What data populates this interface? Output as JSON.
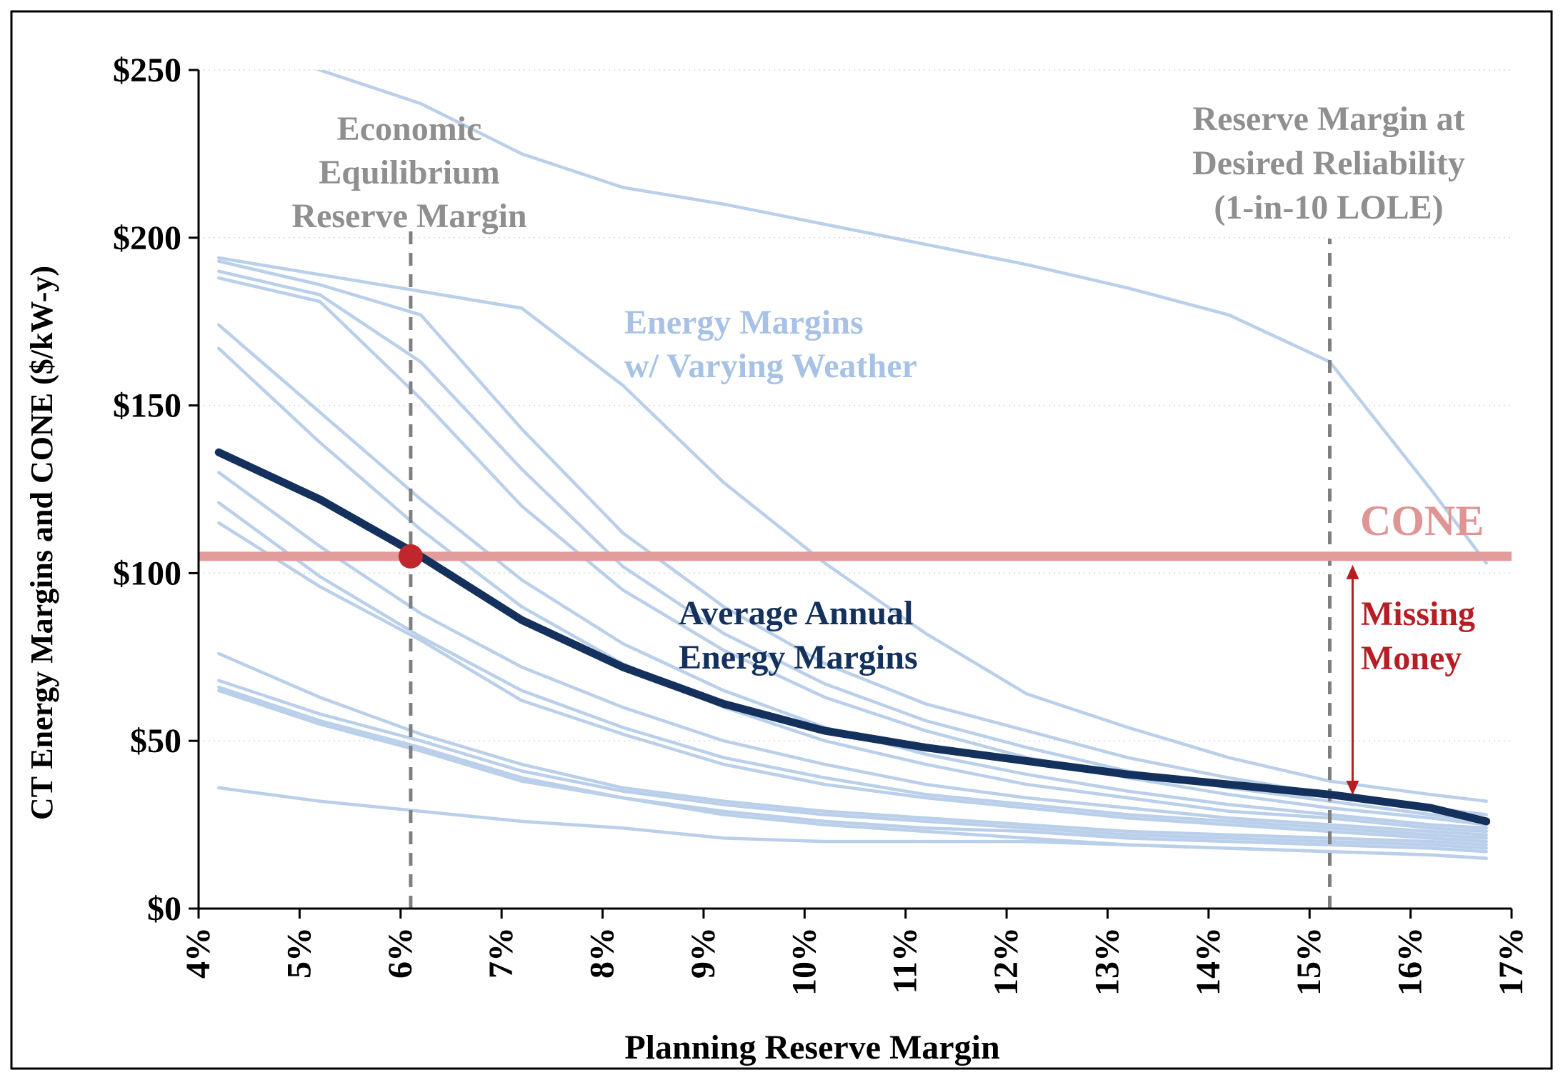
{
  "chart_data": {
    "type": "line",
    "xlabel": "Planning Reserve Margin",
    "ylabel": "CT Energy Margins and CONE ($/kW-y)",
    "xlim": [
      4,
      17
    ],
    "ylim": [
      0,
      250
    ],
    "x_ticks": [
      4,
      5,
      6,
      7,
      8,
      9,
      10,
      11,
      12,
      13,
      14,
      15,
      16,
      17
    ],
    "x_tick_labels": [
      "4%",
      "5%",
      "6%",
      "7%",
      "8%",
      "9%",
      "10%",
      "11%",
      "12%",
      "13%",
      "14%",
      "15%",
      "16%",
      "17%"
    ],
    "y_ticks": [
      0,
      50,
      100,
      150,
      200,
      250
    ],
    "y_tick_labels": [
      "$0",
      "$50",
      "$100",
      "$150",
      "$200",
      "$250"
    ],
    "grid": "horizontal-dotted",
    "cone_value": 105,
    "equilibrium_point": {
      "x": 6.1,
      "y": 105
    },
    "equilibrium_margin": 6.1,
    "reliability_margin": 15.2,
    "missing_money_range": [
      33,
      105
    ],
    "average_series": {
      "x": [
        4.2,
        5.2,
        6.2,
        7.2,
        8.2,
        9.2,
        10.2,
        11.2,
        12.2,
        13.2,
        14.2,
        15.2,
        16.2,
        16.75
      ],
      "y": [
        136,
        122,
        105,
        86,
        72,
        61,
        53,
        48,
        44,
        40,
        37,
        34,
        30,
        26
      ]
    },
    "weather_series": [
      {
        "x": [
          4.2,
          5.2,
          6.2,
          7.2,
          8.2,
          9.2,
          10.2,
          11.2,
          12.2,
          13.2,
          14.2,
          15.2,
          16.2,
          16.75
        ],
        "y": [
          260,
          250,
          240,
          225,
          215,
          210,
          204,
          198,
          192,
          185,
          177,
          163,
          125,
          103
        ]
      },
      {
        "x": [
          4.2,
          5.2,
          6.2,
          7.2,
          8.2,
          9.2,
          10.2,
          11.2,
          12.2,
          13.2,
          14.2,
          15.2,
          16.2,
          16.75
        ],
        "y": [
          194,
          189,
          184,
          179,
          156,
          127,
          103,
          82,
          64,
          54,
          45,
          38,
          34,
          32
        ]
      },
      {
        "x": [
          4.2,
          5.2,
          6.2,
          7.2,
          8.2,
          9.2,
          10.2,
          11.2,
          12.2,
          13.2,
          14.2,
          15.2,
          16.2,
          16.75
        ],
        "y": [
          193,
          186,
          177,
          143,
          112,
          90,
          73,
          61,
          53,
          45,
          39,
          34,
          30,
          28
        ]
      },
      {
        "x": [
          4.2,
          5.2,
          6.2,
          7.2,
          8.2,
          9.2,
          10.2,
          11.2,
          12.2,
          13.2,
          14.2,
          15.2,
          16.2,
          16.75
        ],
        "y": [
          190,
          183,
          163,
          131,
          102,
          82,
          67,
          56,
          48,
          41,
          36,
          32,
          28,
          26
        ]
      },
      {
        "x": [
          4.2,
          5.2,
          6.2,
          7.2,
          8.2,
          9.2,
          10.2,
          11.2,
          12.2,
          13.2,
          14.2,
          15.2,
          16.2,
          16.75
        ],
        "y": [
          188,
          181,
          152,
          120,
          95,
          77,
          63,
          53,
          45,
          39,
          34,
          30,
          27,
          25
        ]
      },
      {
        "x": [
          4.2,
          5.2,
          6.2,
          7.2,
          8.2,
          9.2,
          10.2,
          11.2,
          12.2,
          13.2,
          14.2,
          15.2,
          16.2,
          16.75
        ],
        "y": [
          174,
          148,
          122,
          98,
          79,
          65,
          54,
          46,
          40,
          35,
          31,
          28,
          25,
          24
        ]
      },
      {
        "x": [
          4.2,
          5.2,
          6.2,
          7.2,
          8.2,
          9.2,
          10.2,
          11.2,
          12.2,
          13.2,
          14.2,
          15.2,
          16.2,
          16.75
        ],
        "y": [
          167,
          139,
          113,
          90,
          73,
          60,
          50,
          43,
          37,
          33,
          29,
          27,
          24,
          23
        ]
      },
      {
        "x": [
          4.2,
          5.2,
          6.2,
          7.2,
          8.2,
          9.2,
          10.2,
          11.2,
          12.2,
          13.2,
          14.2,
          15.2,
          16.2,
          16.75
        ],
        "y": [
          130,
          108,
          88,
          72,
          60,
          50,
          43,
          37,
          33,
          30,
          27,
          25,
          23,
          22
        ]
      },
      {
        "x": [
          4.2,
          5.2,
          6.2,
          7.2,
          8.2,
          9.2,
          10.2,
          11.2,
          12.2,
          13.2,
          14.2,
          15.2,
          16.2,
          16.75
        ],
        "y": [
          121,
          99,
          81,
          65,
          54,
          45,
          39,
          34,
          31,
          28,
          26,
          24,
          22,
          21
        ]
      },
      {
        "x": [
          4.2,
          5.2,
          6.2,
          7.2,
          8.2,
          9.2,
          10.2,
          11.2,
          12.2,
          13.2,
          14.2,
          15.2,
          16.2,
          16.75
        ],
        "y": [
          115,
          96,
          80,
          62,
          52,
          43,
          37,
          33,
          30,
          27,
          25,
          23,
          21,
          20
        ]
      },
      {
        "x": [
          4.2,
          5.2,
          6.2,
          7.2,
          8.2,
          9.2,
          10.2,
          11.2,
          12.2,
          13.2,
          14.2,
          15.2,
          16.2,
          16.75
        ],
        "y": [
          76,
          63,
          52,
          43,
          36,
          32,
          29,
          27,
          25,
          23,
          22,
          21,
          20,
          19
        ]
      },
      {
        "x": [
          4.2,
          5.2,
          6.2,
          7.2,
          8.2,
          9.2,
          10.2,
          11.2,
          12.2,
          13.2,
          14.2,
          15.2,
          16.2,
          16.75
        ],
        "y": [
          68,
          58,
          50,
          41,
          35,
          31,
          28,
          26,
          24,
          22,
          21,
          20,
          19,
          18
        ]
      },
      {
        "x": [
          4.2,
          5.2,
          6.2,
          7.2,
          8.2,
          9.2,
          10.2,
          11.2,
          12.2,
          13.2,
          14.2,
          15.2,
          16.2,
          16.75
        ],
        "y": [
          66,
          56,
          48,
          39,
          33,
          29,
          26,
          24,
          23,
          21,
          20,
          19,
          18,
          17
        ]
      },
      {
        "x": [
          4.2,
          5.2,
          6.2,
          7.2,
          8.2,
          9.2,
          10.2,
          11.2,
          12.2,
          13.2,
          14.2,
          15.2,
          16.2,
          16.75
        ],
        "y": [
          65,
          55,
          47,
          38,
          33,
          28,
          25,
          23,
          21,
          19,
          18,
          17,
          16,
          15
        ]
      },
      {
        "x": [
          4.2,
          5.2,
          6.2,
          7.2,
          8.2,
          9.2,
          10.2,
          11.2,
          12.2,
          13.2,
          14.2,
          15.2,
          16.2,
          16.75
        ],
        "y": [
          36,
          32,
          29,
          26,
          24,
          21,
          20,
          20,
          20,
          19,
          18,
          17,
          16,
          15
        ]
      }
    ],
    "annotations": {
      "equilibrium": [
        "Economic",
        "Equilibrium",
        "Reserve Margin"
      ],
      "reliability": [
        "Reserve Margin at",
        "Desired Reliability",
        "(1-in-10 LOLE)"
      ],
      "energy_margins": [
        "Energy Margins",
        "w/ Varying Weather"
      ],
      "average": [
        "Average Annual",
        "Energy Margins"
      ],
      "cone": "CONE",
      "missing_money": [
        "Missing",
        "Money"
      ]
    },
    "colors": {
      "weather_lines": "#b9cfea",
      "average_line": "#13315c",
      "cone_line": "#e29c9b",
      "cone_label": "#df9594",
      "equilibrium_dot": "#c0272d",
      "missing_money": "#b51f24",
      "dashed_lines": "#7f7f7f",
      "annotation_gray": "#8f8f8f",
      "energy_margin_label": "#a7c2e6",
      "grid": "#d9d9d9",
      "axes": "#000000"
    }
  }
}
